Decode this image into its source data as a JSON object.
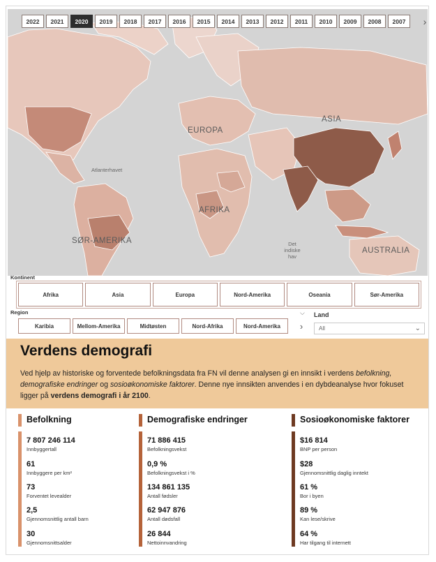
{
  "years": [
    "2022",
    "2021",
    "2020",
    "2019",
    "2018",
    "2017",
    "2016",
    "2015",
    "2014",
    "2013",
    "2012",
    "2011",
    "2010",
    "2009",
    "2008",
    "2007"
  ],
  "selected_year": "2020",
  "map_labels": {
    "asia": "ASIA",
    "europa": "EUROPA",
    "afrika": "AFRIKA",
    "sor_amerika": "SØR-AMERIKA",
    "australia": "AUSTRALIA",
    "atlanterhavet": "Atlanterhavet",
    "det_indiske_hav": [
      "Det",
      "indiske",
      "hav"
    ]
  },
  "kontinent": {
    "title": "Kontinent",
    "options": [
      "Afrika",
      "Asia",
      "Europa",
      "Nord-Amerika",
      "Oseania",
      "Sør-Amerika"
    ]
  },
  "region": {
    "title": "Region",
    "options": [
      "Karibia",
      "Mellom-Amerika",
      "Midtøsten",
      "Nord-Afrika",
      "Nord-Amerika"
    ]
  },
  "land": {
    "title": "Land",
    "value": "All"
  },
  "banner": {
    "title": "Verdens demografi",
    "text_1": "Ved hjelp av historiske og forventede befolkningsdata fra FN vil denne analysen gi en innsikt i verdens ",
    "text_italic": "befolkning, demografiske endringer",
    "text_2": " og ",
    "text_italic_2": "sosioøkonomiske faktorer",
    "text_3": ". Denne nye innsikten anvendes i en dybdeanalyse hvor fokuset ligger på ",
    "text_bold": "verdens demografi i år 2100",
    "text_4": "."
  },
  "columns": [
    {
      "title": "Befolkning",
      "color": "#d9926b",
      "stats": [
        {
          "value": "7 807 246 114",
          "label": "Innbyggertall"
        },
        {
          "value": "61",
          "label": "Innbyggere per km²"
        },
        {
          "value": "73",
          "label": "Forventet levealder"
        },
        {
          "value": "2,5",
          "label": "Gjennomsnittlig antall barn"
        },
        {
          "value": "30",
          "label": "Gjennomsnittsalder"
        }
      ]
    },
    {
      "title": "Demografiske endringer",
      "color": "#b5633a",
      "stats": [
        {
          "value": "71 886 415",
          "label": "Befolkningsvekst"
        },
        {
          "value": "0,9 %",
          "label": "Befolkningsvekst i %"
        },
        {
          "value": "134 861 135",
          "label": "Antall fødsler"
        },
        {
          "value": "62 947 876",
          "label": "Antall dødsfall"
        },
        {
          "value": "26 844",
          "label": "Nettoinnvandring"
        }
      ]
    },
    {
      "title": "Sosioøkonomiske faktorer",
      "color": "#6e3a22",
      "stats": [
        {
          "value": "$16 814",
          "label": "BNP per person"
        },
        {
          "value": "$28",
          "label": "Gjennomsnittlig daglig inntekt"
        },
        {
          "value": "61 %",
          "label": "Bor i byen"
        },
        {
          "value": "89 %",
          "label": "Kan lese/skrive"
        },
        {
          "value": "64 %",
          "label": "Har tilgang til internett"
        }
      ]
    }
  ]
}
